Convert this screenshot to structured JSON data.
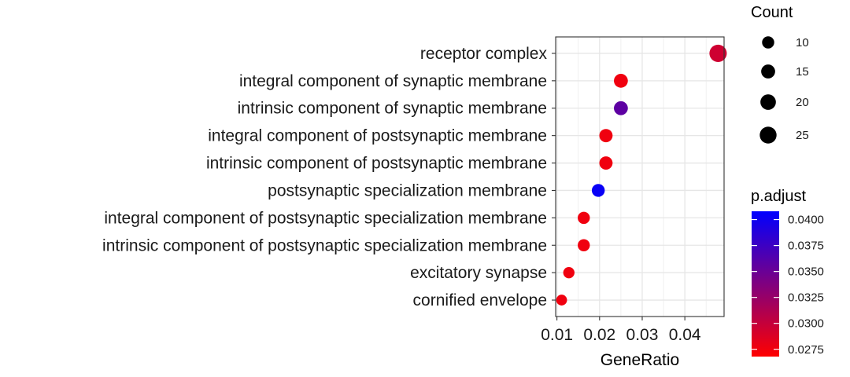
{
  "chart_data": {
    "type": "scatter",
    "title": "",
    "xlabel": "GeneRatio",
    "ylabel": "",
    "xlim": [
      0.0097,
      0.0492
    ],
    "x_ticks": [
      0.01,
      0.02,
      0.03,
      0.04
    ],
    "x_tick_labels": [
      "0.01",
      "0.02",
      "0.03",
      "0.04"
    ],
    "grid": true,
    "categories": [
      "receptor complex",
      "integral component of synaptic membrane",
      "intrinsic component of synaptic membrane",
      "integral component of postsynaptic membrane",
      "intrinsic component of postsynaptic membrane",
      "postsynaptic specialization membrane",
      "integral component of postsynaptic specialization membrane",
      "intrinsic component of postsynaptic specialization membrane",
      "excitatory synapse",
      "cornified envelope"
    ],
    "points": [
      {
        "category": "receptor complex",
        "x": 0.0478,
        "count": 27,
        "p_adjust": 0.0295
      },
      {
        "category": "integral component of synaptic membrane",
        "x": 0.025,
        "count": 15,
        "p_adjust": 0.0276
      },
      {
        "category": "intrinsic component of synaptic membrane",
        "x": 0.025,
        "count": 15,
        "p_adjust": 0.0357
      },
      {
        "category": "integral component of postsynaptic membrane",
        "x": 0.0215,
        "count": 13,
        "p_adjust": 0.0276
      },
      {
        "category": "intrinsic component of postsynaptic membrane",
        "x": 0.0215,
        "count": 13,
        "p_adjust": 0.0276
      },
      {
        "category": "postsynaptic specialization membrane",
        "x": 0.0197,
        "count": 12,
        "p_adjust": 0.0403
      },
      {
        "category": "integral component of postsynaptic specialization membrane",
        "x": 0.0163,
        "count": 10,
        "p_adjust": 0.0276
      },
      {
        "category": "intrinsic component of postsynaptic specialization membrane",
        "x": 0.0163,
        "count": 10,
        "p_adjust": 0.0276
      },
      {
        "category": "excitatory synapse",
        "x": 0.0128,
        "count": 8,
        "p_adjust": 0.0276
      },
      {
        "category": "cornified envelope",
        "x": 0.0111,
        "count": 7,
        "p_adjust": 0.0276
      }
    ],
    "size_legend": {
      "title": "Count",
      "values": [
        10,
        15,
        20,
        25
      ],
      "labels": [
        "10",
        "15",
        "20",
        "25"
      ]
    },
    "color_legend": {
      "title": "p.adjust",
      "range": [
        0.0268,
        0.0408
      ],
      "ticks": [
        0.04,
        0.0375,
        0.035,
        0.0325,
        0.03,
        0.0275
      ],
      "labels": [
        "0.0400",
        "0.0375",
        "0.0350",
        "0.0325",
        "0.0300",
        "0.0275"
      ],
      "low_color": "#ff0000",
      "high_color": "#0000ff"
    }
  }
}
